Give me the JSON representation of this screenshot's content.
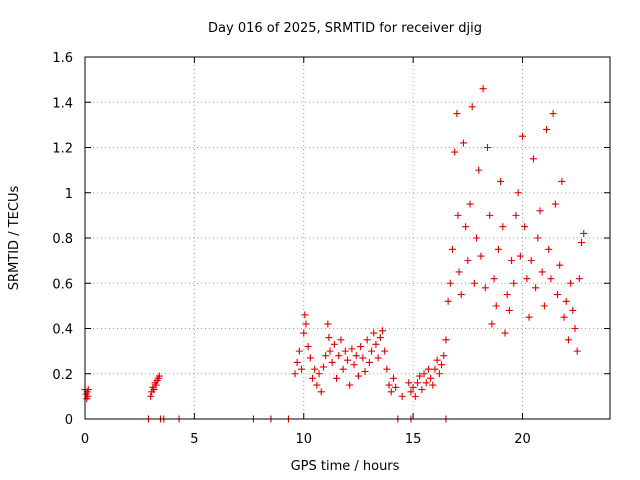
{
  "chart_data": {
    "type": "scatter",
    "title": "Day 016 of 2025, SRMTID for receiver djig",
    "xlabel": "GPS time / hours",
    "ylabel": "SRMTID / TECUs",
    "xlim": [
      0,
      24
    ],
    "ylim": [
      0,
      1.6
    ],
    "x_ticks": [
      0,
      5,
      10,
      15,
      20
    ],
    "x_tick_labels": [
      "0",
      "5",
      "10",
      "15",
      "20"
    ],
    "y_ticks": [
      0,
      0.2,
      0.4,
      0.6,
      0.8,
      1.0,
      1.2,
      1.4,
      1.6
    ],
    "y_tick_labels": [
      "0",
      "0.2",
      "0.4",
      "0.6",
      "0.8",
      "1",
      "1.2",
      "1.4",
      "1.6"
    ],
    "grid": true,
    "marker": "plus",
    "color": "#e00000",
    "series": [
      {
        "name": "SRMTID",
        "points": [
          [
            0.0,
            0.13
          ],
          [
            0.05,
            0.11
          ],
          [
            0.08,
            0.09
          ],
          [
            0.1,
            0.12
          ],
          [
            0.13,
            0.1
          ],
          [
            0.15,
            0.13
          ],
          [
            2.9,
            0.0
          ],
          [
            3.0,
            0.1
          ],
          [
            3.05,
            0.12
          ],
          [
            3.1,
            0.14
          ],
          [
            3.15,
            0.13
          ],
          [
            3.2,
            0.16
          ],
          [
            3.25,
            0.15
          ],
          [
            3.3,
            0.17
          ],
          [
            3.35,
            0.18
          ],
          [
            3.4,
            0.19
          ],
          [
            3.45,
            0.0
          ],
          [
            3.6,
            0.0
          ],
          [
            4.3,
            0.0
          ],
          [
            7.7,
            0.0
          ],
          [
            8.5,
            0.0
          ],
          [
            9.3,
            0.0
          ],
          [
            9.6,
            0.2
          ],
          [
            9.7,
            0.25
          ],
          [
            9.8,
            0.3
          ],
          [
            9.9,
            0.22
          ],
          [
            10.0,
            0.38
          ],
          [
            10.05,
            0.46
          ],
          [
            10.1,
            0.42
          ],
          [
            10.2,
            0.32
          ],
          [
            10.3,
            0.27
          ],
          [
            10.4,
            0.18
          ],
          [
            10.5,
            0.22
          ],
          [
            10.6,
            0.15
          ],
          [
            10.7,
            0.2
          ],
          [
            10.8,
            0.12
          ],
          [
            10.9,
            0.23
          ],
          [
            11.0,
            0.28
          ],
          [
            11.1,
            0.42
          ],
          [
            11.15,
            0.36
          ],
          [
            11.2,
            0.3
          ],
          [
            11.3,
            0.25
          ],
          [
            11.4,
            0.33
          ],
          [
            11.5,
            0.18
          ],
          [
            11.6,
            0.28
          ],
          [
            11.7,
            0.35
          ],
          [
            11.8,
            0.22
          ],
          [
            11.9,
            0.3
          ],
          [
            12.0,
            0.26
          ],
          [
            12.1,
            0.15
          ],
          [
            12.2,
            0.31
          ],
          [
            12.3,
            0.24
          ],
          [
            12.4,
            0.28
          ],
          [
            12.5,
            0.19
          ],
          [
            12.6,
            0.32
          ],
          [
            12.7,
            0.27
          ],
          [
            12.8,
            0.21
          ],
          [
            12.9,
            0.35
          ],
          [
            13.0,
            0.25
          ],
          [
            13.1,
            0.3
          ],
          [
            13.2,
            0.38
          ],
          [
            13.3,
            0.33
          ],
          [
            13.4,
            0.27
          ],
          [
            13.5,
            0.36
          ],
          [
            13.6,
            0.39
          ],
          [
            13.7,
            0.3
          ],
          [
            13.8,
            0.22
          ],
          [
            13.9,
            0.15
          ],
          [
            14.0,
            0.12
          ],
          [
            14.1,
            0.18
          ],
          [
            14.2,
            0.14
          ],
          [
            14.3,
            0.0
          ],
          [
            14.5,
            0.1
          ],
          [
            14.8,
            0.16
          ],
          [
            14.9,
            0.12
          ],
          [
            15.0,
            0.14
          ],
          [
            15.1,
            0.1
          ],
          [
            15.2,
            0.16
          ],
          [
            15.3,
            0.19
          ],
          [
            15.4,
            0.13
          ],
          [
            15.5,
            0.2
          ],
          [
            15.6,
            0.16
          ],
          [
            15.7,
            0.22
          ],
          [
            15.8,
            0.18
          ],
          [
            15.9,
            0.15
          ],
          [
            16.0,
            0.22
          ],
          [
            16.1,
            0.26
          ],
          [
            16.2,
            0.2
          ],
          [
            16.3,
            0.24
          ],
          [
            16.4,
            0.28
          ],
          [
            16.5,
            0.0
          ],
          [
            14.9,
            0.0
          ],
          [
            16.5,
            0.35
          ],
          [
            16.6,
            0.52
          ],
          [
            16.7,
            0.6
          ],
          [
            16.8,
            0.75
          ],
          [
            16.9,
            1.18
          ],
          [
            17.0,
            1.35
          ],
          [
            17.05,
            0.9
          ],
          [
            17.1,
            0.65
          ],
          [
            17.2,
            0.55
          ],
          [
            17.3,
            1.22
          ],
          [
            17.4,
            0.85
          ],
          [
            17.5,
            0.7
          ],
          [
            17.6,
            0.95
          ],
          [
            17.7,
            1.38
          ],
          [
            17.8,
            0.6
          ],
          [
            17.9,
            0.8
          ],
          [
            18.0,
            1.1
          ],
          [
            18.1,
            0.72
          ],
          [
            18.2,
            1.46
          ],
          [
            18.3,
            0.58
          ],
          [
            18.4,
            1.2
          ],
          [
            18.5,
            0.9
          ],
          [
            18.6,
            0.42
          ],
          [
            18.7,
            0.62
          ],
          [
            18.8,
            0.5
          ],
          [
            18.9,
            0.75
          ],
          [
            19.0,
            1.05
          ],
          [
            19.1,
            0.85
          ],
          [
            19.2,
            0.38
          ],
          [
            19.3,
            0.55
          ],
          [
            19.4,
            0.48
          ],
          [
            19.5,
            0.7
          ],
          [
            19.6,
            0.6
          ],
          [
            19.7,
            0.9
          ],
          [
            19.8,
            1.0
          ],
          [
            19.9,
            0.72
          ],
          [
            20.0,
            1.25
          ],
          [
            20.1,
            0.85
          ],
          [
            20.2,
            0.62
          ],
          [
            20.3,
            0.45
          ],
          [
            20.4,
            0.7
          ],
          [
            20.5,
            1.15
          ],
          [
            20.6,
            0.58
          ],
          [
            20.7,
            0.8
          ],
          [
            20.8,
            0.92
          ],
          [
            20.9,
            0.65
          ],
          [
            21.0,
            0.5
          ],
          [
            21.1,
            1.28
          ],
          [
            21.2,
            0.75
          ],
          [
            21.3,
            0.62
          ],
          [
            21.4,
            1.35
          ],
          [
            21.5,
            0.95
          ],
          [
            21.6,
            0.55
          ],
          [
            21.7,
            0.68
          ],
          [
            21.8,
            1.05
          ],
          [
            21.9,
            0.45
          ],
          [
            22.0,
            0.52
          ],
          [
            22.1,
            0.35
          ],
          [
            22.2,
            0.6
          ],
          [
            22.3,
            0.48
          ],
          [
            22.4,
            0.4
          ],
          [
            22.5,
            0.3
          ],
          [
            22.6,
            0.62
          ],
          [
            22.7,
            0.78
          ],
          [
            22.8,
            0.82
          ]
        ]
      }
    ]
  }
}
